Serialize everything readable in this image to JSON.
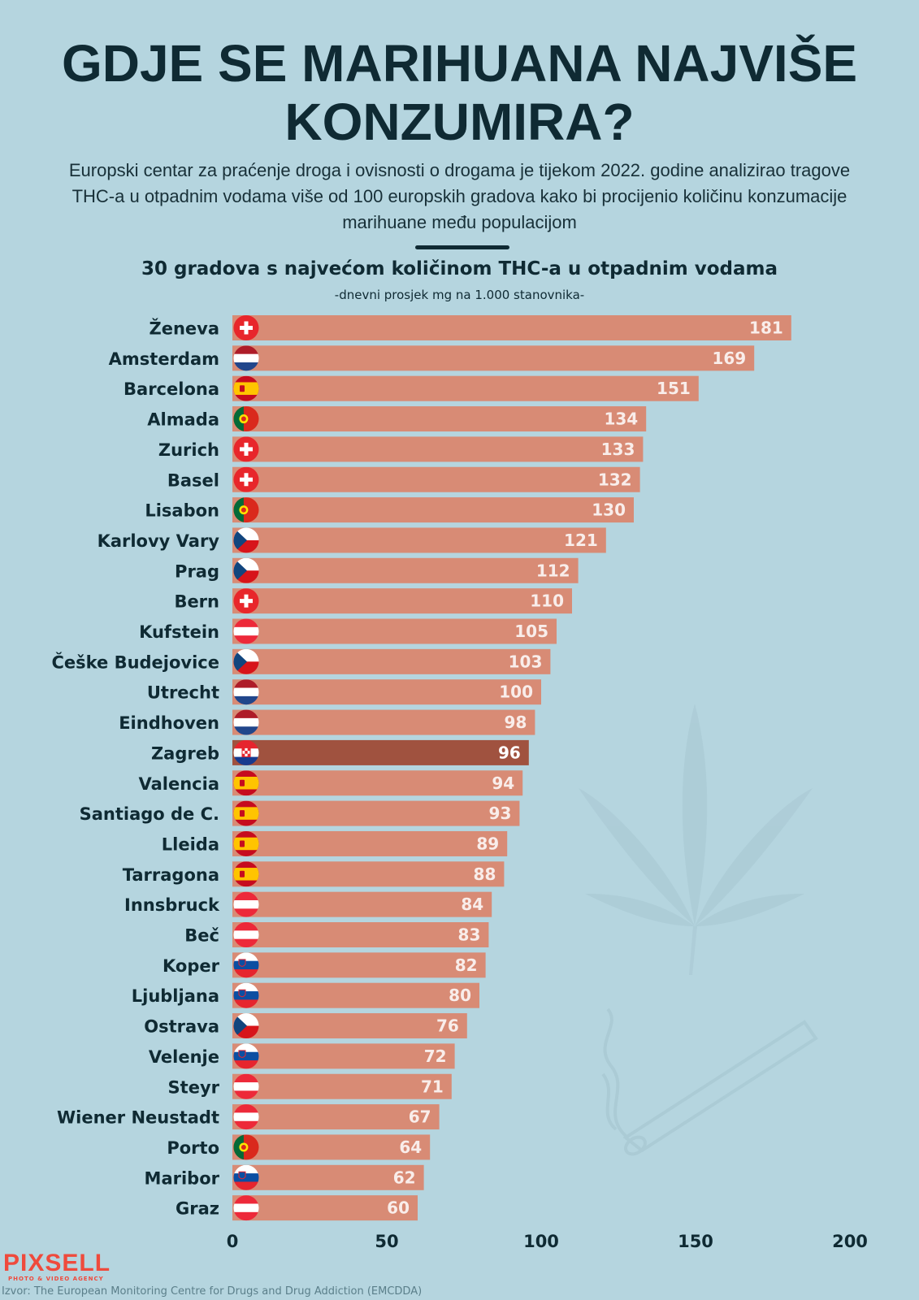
{
  "header": {
    "title": "GDJE SE MARIHUANA NAJVIŠE KONZUMIRA?",
    "intro": "Europski centar za praćenje droga i ovisnosti o drogama je tijekom 2022. godine analizirao tragove THC-a u otpadnim vodama više od 100 europskih gradova kako bi procijenio količinu konzumacije marihuane među populacijom"
  },
  "chart_data": {
    "type": "bar",
    "orientation": "horizontal",
    "title": "30 gradova s najvećom količinom THC-a u otpadnim vodama",
    "subtitle": "-dnevni prosjek mg na 1.000 stanovnika-",
    "xlim": [
      0,
      200
    ],
    "xticks": [
      "0",
      "50",
      "100",
      "150",
      "200"
    ],
    "grid": false,
    "bar_color": "#d88b75",
    "highlight_color": "#a0523f",
    "highlight": "Zagreb",
    "categories": [
      "Ženeva",
      "Amsterdam",
      "Barcelona",
      "Almada",
      "Zurich",
      "Basel",
      "Lisabon",
      "Karlovy Vary",
      "Prag",
      "Bern",
      "Kufstein",
      "Češke Budejovice",
      "Utrecht",
      "Eindhoven",
      "Zagreb",
      "Valencia",
      "Santiago de C.",
      "Lleida",
      "Tarragona",
      "Innsbruck",
      "Beč",
      "Koper",
      "Ljubljana",
      "Ostrava",
      "Velenje",
      "Steyr",
      "Wiener Neustadt",
      "Porto",
      "Maribor",
      "Graz"
    ],
    "values": [
      181,
      169,
      151,
      134,
      133,
      132,
      130,
      121,
      112,
      110,
      105,
      103,
      100,
      98,
      96,
      94,
      93,
      89,
      88,
      84,
      83,
      82,
      80,
      76,
      72,
      71,
      67,
      64,
      62,
      60
    ],
    "flags": [
      "switzerland-flag-icon",
      "netherlands-flag-icon",
      "spain-flag-icon",
      "portugal-flag-icon",
      "switzerland-flag-icon",
      "switzerland-flag-icon",
      "portugal-flag-icon",
      "czechia-flag-icon",
      "czechia-flag-icon",
      "switzerland-flag-icon",
      "austria-flag-icon",
      "czechia-flag-icon",
      "netherlands-flag-icon",
      "netherlands-flag-icon",
      "croatia-flag-icon",
      "spain-flag-icon",
      "spain-flag-icon",
      "spain-flag-icon",
      "spain-flag-icon",
      "austria-flag-icon",
      "austria-flag-icon",
      "slovenia-flag-icon",
      "slovenia-flag-icon",
      "czechia-flag-icon",
      "slovenia-flag-icon",
      "austria-flag-icon",
      "austria-flag-icon",
      "portugal-flag-icon",
      "slovenia-flag-icon",
      "austria-flag-icon"
    ]
  },
  "decorations": [
    "cannabis-leaf-icon",
    "joint-icon"
  ],
  "footer": {
    "brand": "PIXSELL",
    "brand_tagline": "PHOTO & VIDEO AGENCY",
    "source": "Izvor: The European Monitoring Centre for Drugs and Drug Addiction (EMCDDA)"
  }
}
